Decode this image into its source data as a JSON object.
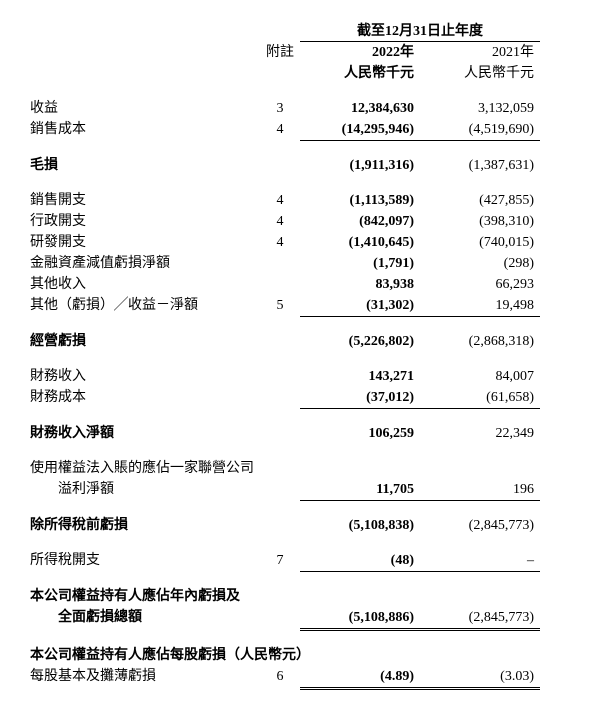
{
  "header": {
    "period": "截至12月31日止年度",
    "note": "附註",
    "y2022": "2022年",
    "y2021": "2021年",
    "unit2022": "人民幣千元",
    "unit2021": "人民幣千元"
  },
  "rows": {
    "revenue": {
      "label": "收益",
      "note": "3",
      "v22": "12,384,630",
      "v21": "3,132,059"
    },
    "cogs": {
      "label": "銷售成本",
      "note": "4",
      "v22": "(14,295,946)",
      "v21": "(4,519,690)"
    },
    "gross_loss": {
      "label": "毛損",
      "note": "",
      "v22": "(1,911,316)",
      "v21": "(1,387,631)"
    },
    "selling": {
      "label": "銷售開支",
      "note": "4",
      "v22": "(1,113,589)",
      "v21": "(427,855)"
    },
    "admin": {
      "label": "行政開支",
      "note": "4",
      "v22": "(842,097)",
      "v21": "(398,310)"
    },
    "rnd": {
      "label": "研發開支",
      "note": "4",
      "v22": "(1,410,645)",
      "v21": "(740,015)"
    },
    "impair": {
      "label": "金融資產減值虧損淨額",
      "note": "",
      "v22": "(1,791)",
      "v21": "(298)"
    },
    "other_inc": {
      "label": "其他收入",
      "note": "",
      "v22": "83,938",
      "v21": "66,293"
    },
    "other_net": {
      "label": "其他（虧損）╱收益－淨額",
      "note": "5",
      "v22": "(31,302)",
      "v21": "19,498"
    },
    "op_loss": {
      "label": "經營虧損",
      "note": "",
      "v22": "(5,226,802)",
      "v21": "(2,868,318)"
    },
    "fin_inc": {
      "label": "財務收入",
      "note": "",
      "v22": "143,271",
      "v21": "84,007"
    },
    "fin_cost": {
      "label": "財務成本",
      "note": "",
      "v22": "(37,012)",
      "v21": "(61,658)"
    },
    "fin_net": {
      "label": "財務收入淨額",
      "note": "",
      "v22": "106,259",
      "v21": "22,349"
    },
    "assoc1": {
      "label": "使用權益法入賬的應佔一家聯營公司"
    },
    "assoc2": {
      "label": "溢利淨額",
      "note": "",
      "v22": "11,705",
      "v21": "196"
    },
    "pretax": {
      "label": "除所得稅前虧損",
      "note": "",
      "v22": "(5,108,838)",
      "v21": "(2,845,773)"
    },
    "tax": {
      "label": "所得稅開支",
      "note": "7",
      "v22": "(48)",
      "v21": "–"
    },
    "total1": {
      "label": "本公司權益持有人應佔年內虧損及"
    },
    "total2": {
      "label": "全面虧損總額",
      "note": "",
      "v22": "(5,108,886)",
      "v21": "(2,845,773)"
    },
    "eps_hdr": {
      "label": "本公司權益持有人應佔每股虧損（人民幣元）"
    },
    "eps": {
      "label": "每股基本及攤薄虧損",
      "note": "6",
      "v22": "(4.89)",
      "v21": "(3.03)"
    }
  }
}
